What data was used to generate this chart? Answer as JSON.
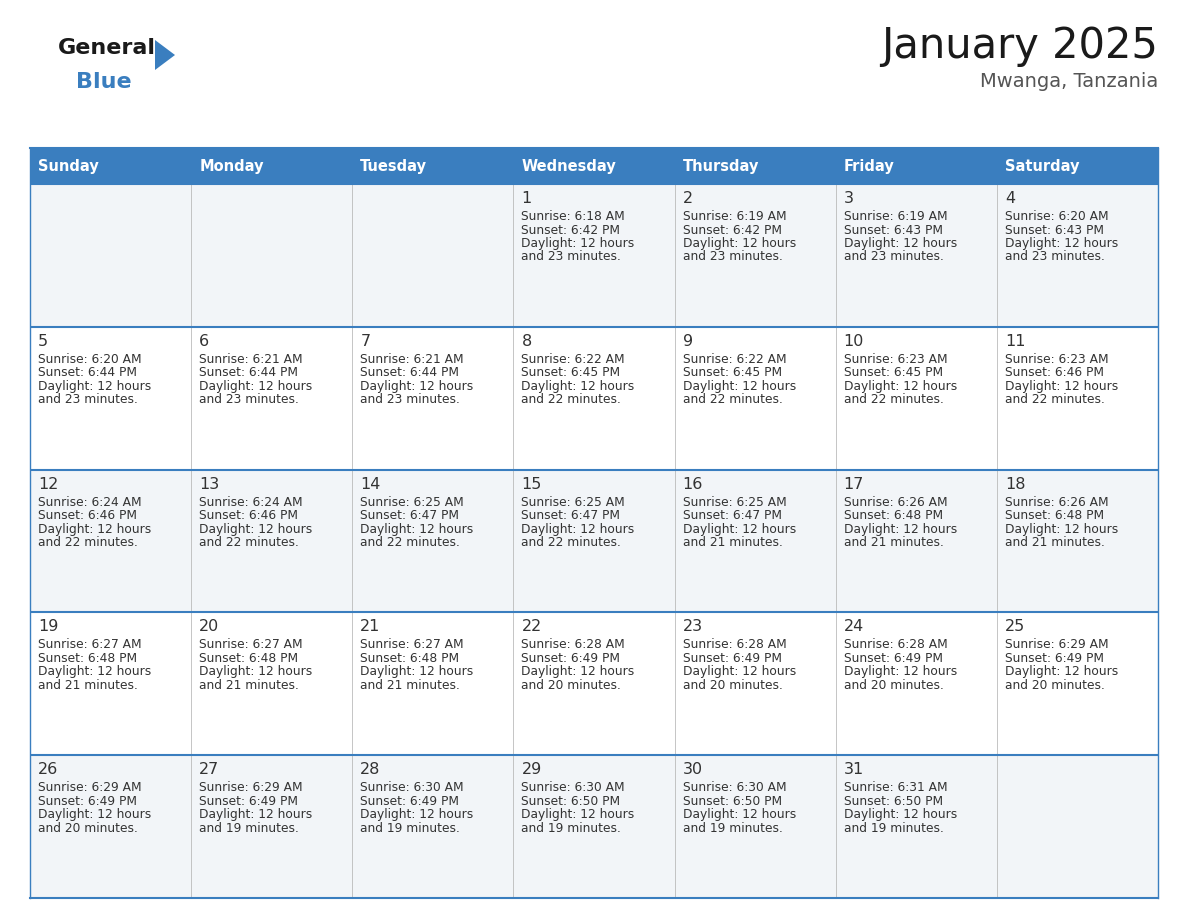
{
  "title": "January 2025",
  "subtitle": "Mwanga, Tanzania",
  "header_color": "#3a7ebf",
  "header_text_color": "#ffffff",
  "day_names": [
    "Sunday",
    "Monday",
    "Tuesday",
    "Wednesday",
    "Thursday",
    "Friday",
    "Saturday"
  ],
  "cell_bg_light": "#f2f5f8",
  "cell_bg_white": "#ffffff",
  "divider_color": "#3a7ebf",
  "text_color": "#333333",
  "calendar": [
    [
      null,
      null,
      null,
      {
        "day": 1,
        "sunrise": "6:18 AM",
        "sunset": "6:42 PM",
        "daylight_h": "12 hours",
        "daylight_m": "and 23 minutes."
      },
      {
        "day": 2,
        "sunrise": "6:19 AM",
        "sunset": "6:42 PM",
        "daylight_h": "12 hours",
        "daylight_m": "and 23 minutes."
      },
      {
        "day": 3,
        "sunrise": "6:19 AM",
        "sunset": "6:43 PM",
        "daylight_h": "12 hours",
        "daylight_m": "and 23 minutes."
      },
      {
        "day": 4,
        "sunrise": "6:20 AM",
        "sunset": "6:43 PM",
        "daylight_h": "12 hours",
        "daylight_m": "and 23 minutes."
      }
    ],
    [
      {
        "day": 5,
        "sunrise": "6:20 AM",
        "sunset": "6:44 PM",
        "daylight_h": "12 hours",
        "daylight_m": "and 23 minutes."
      },
      {
        "day": 6,
        "sunrise": "6:21 AM",
        "sunset": "6:44 PM",
        "daylight_h": "12 hours",
        "daylight_m": "and 23 minutes."
      },
      {
        "day": 7,
        "sunrise": "6:21 AM",
        "sunset": "6:44 PM",
        "daylight_h": "12 hours",
        "daylight_m": "and 23 minutes."
      },
      {
        "day": 8,
        "sunrise": "6:22 AM",
        "sunset": "6:45 PM",
        "daylight_h": "12 hours",
        "daylight_m": "and 22 minutes."
      },
      {
        "day": 9,
        "sunrise": "6:22 AM",
        "sunset": "6:45 PM",
        "daylight_h": "12 hours",
        "daylight_m": "and 22 minutes."
      },
      {
        "day": 10,
        "sunrise": "6:23 AM",
        "sunset": "6:45 PM",
        "daylight_h": "12 hours",
        "daylight_m": "and 22 minutes."
      },
      {
        "day": 11,
        "sunrise": "6:23 AM",
        "sunset": "6:46 PM",
        "daylight_h": "12 hours",
        "daylight_m": "and 22 minutes."
      }
    ],
    [
      {
        "day": 12,
        "sunrise": "6:24 AM",
        "sunset": "6:46 PM",
        "daylight_h": "12 hours",
        "daylight_m": "and 22 minutes."
      },
      {
        "day": 13,
        "sunrise": "6:24 AM",
        "sunset": "6:46 PM",
        "daylight_h": "12 hours",
        "daylight_m": "and 22 minutes."
      },
      {
        "day": 14,
        "sunrise": "6:25 AM",
        "sunset": "6:47 PM",
        "daylight_h": "12 hours",
        "daylight_m": "and 22 minutes."
      },
      {
        "day": 15,
        "sunrise": "6:25 AM",
        "sunset": "6:47 PM",
        "daylight_h": "12 hours",
        "daylight_m": "and 22 minutes."
      },
      {
        "day": 16,
        "sunrise": "6:25 AM",
        "sunset": "6:47 PM",
        "daylight_h": "12 hours",
        "daylight_m": "and 21 minutes."
      },
      {
        "day": 17,
        "sunrise": "6:26 AM",
        "sunset": "6:48 PM",
        "daylight_h": "12 hours",
        "daylight_m": "and 21 minutes."
      },
      {
        "day": 18,
        "sunrise": "6:26 AM",
        "sunset": "6:48 PM",
        "daylight_h": "12 hours",
        "daylight_m": "and 21 minutes."
      }
    ],
    [
      {
        "day": 19,
        "sunrise": "6:27 AM",
        "sunset": "6:48 PM",
        "daylight_h": "12 hours",
        "daylight_m": "and 21 minutes."
      },
      {
        "day": 20,
        "sunrise": "6:27 AM",
        "sunset": "6:48 PM",
        "daylight_h": "12 hours",
        "daylight_m": "and 21 minutes."
      },
      {
        "day": 21,
        "sunrise": "6:27 AM",
        "sunset": "6:48 PM",
        "daylight_h": "12 hours",
        "daylight_m": "and 21 minutes."
      },
      {
        "day": 22,
        "sunrise": "6:28 AM",
        "sunset": "6:49 PM",
        "daylight_h": "12 hours",
        "daylight_m": "and 20 minutes."
      },
      {
        "day": 23,
        "sunrise": "6:28 AM",
        "sunset": "6:49 PM",
        "daylight_h": "12 hours",
        "daylight_m": "and 20 minutes."
      },
      {
        "day": 24,
        "sunrise": "6:28 AM",
        "sunset": "6:49 PM",
        "daylight_h": "12 hours",
        "daylight_m": "and 20 minutes."
      },
      {
        "day": 25,
        "sunrise": "6:29 AM",
        "sunset": "6:49 PM",
        "daylight_h": "12 hours",
        "daylight_m": "and 20 minutes."
      }
    ],
    [
      {
        "day": 26,
        "sunrise": "6:29 AM",
        "sunset": "6:49 PM",
        "daylight_h": "12 hours",
        "daylight_m": "and 20 minutes."
      },
      {
        "day": 27,
        "sunrise": "6:29 AM",
        "sunset": "6:49 PM",
        "daylight_h": "12 hours",
        "daylight_m": "and 19 minutes."
      },
      {
        "day": 28,
        "sunrise": "6:30 AM",
        "sunset": "6:49 PM",
        "daylight_h": "12 hours",
        "daylight_m": "and 19 minutes."
      },
      {
        "day": 29,
        "sunrise": "6:30 AM",
        "sunset": "6:50 PM",
        "daylight_h": "12 hours",
        "daylight_m": "and 19 minutes."
      },
      {
        "day": 30,
        "sunrise": "6:30 AM",
        "sunset": "6:50 PM",
        "daylight_h": "12 hours",
        "daylight_m": "and 19 minutes."
      },
      {
        "day": 31,
        "sunrise": "6:31 AM",
        "sunset": "6:50 PM",
        "daylight_h": "12 hours",
        "daylight_m": "and 19 minutes."
      },
      null
    ]
  ]
}
